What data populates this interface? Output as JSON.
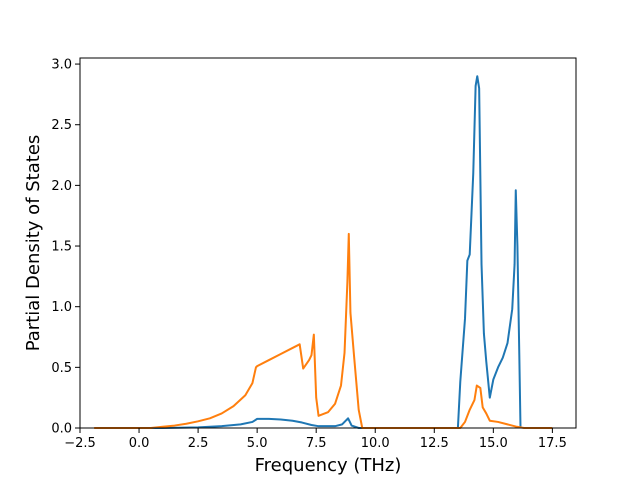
{
  "chart_data": {
    "type": "line",
    "xlabel": "Frequency (THz)",
    "ylabel": "Partial Density of States",
    "xlim": [
      -2.5,
      18.5
    ],
    "ylim": [
      0,
      3.05
    ],
    "xticks": [
      -2.5,
      0.0,
      2.5,
      5.0,
      7.5,
      10.0,
      12.5,
      15.0,
      17.5
    ],
    "xtick_labels": [
      "−2.5",
      "0.0",
      "2.5",
      "5.0",
      "7.5",
      "10.0",
      "12.5",
      "15.0",
      "17.5"
    ],
    "yticks": [
      0.0,
      0.5,
      1.0,
      1.5,
      2.0,
      2.5,
      3.0
    ],
    "ytick_labels": [
      "0.0",
      "0.5",
      "1.0",
      "1.5",
      "2.0",
      "2.5",
      "3.0"
    ],
    "grid": false,
    "series": [
      {
        "color": "#1f77b4",
        "points": [
          [
            -1.6,
            0.0
          ],
          [
            1.0,
            0.0
          ],
          [
            2.5,
            0.005
          ],
          [
            3.5,
            0.015
          ],
          [
            4.3,
            0.03
          ],
          [
            4.8,
            0.05
          ],
          [
            5.0,
            0.075
          ],
          [
            5.5,
            0.075
          ],
          [
            6.0,
            0.07
          ],
          [
            6.5,
            0.06
          ],
          [
            6.9,
            0.045
          ],
          [
            7.3,
            0.025
          ],
          [
            7.6,
            0.015
          ],
          [
            8.3,
            0.015
          ],
          [
            8.6,
            0.03
          ],
          [
            8.85,
            0.08
          ],
          [
            9.0,
            0.02
          ],
          [
            9.3,
            0.0
          ],
          [
            13.5,
            0.0
          ],
          [
            13.6,
            0.38
          ],
          [
            13.8,
            0.9
          ],
          [
            13.9,
            1.38
          ],
          [
            14.0,
            1.43
          ],
          [
            14.15,
            2.1
          ],
          [
            14.25,
            2.82
          ],
          [
            14.32,
            2.9
          ],
          [
            14.4,
            2.8
          ],
          [
            14.5,
            1.35
          ],
          [
            14.6,
            0.78
          ],
          [
            14.7,
            0.55
          ],
          [
            14.85,
            0.25
          ],
          [
            15.0,
            0.4
          ],
          [
            15.2,
            0.5
          ],
          [
            15.4,
            0.58
          ],
          [
            15.6,
            0.7
          ],
          [
            15.8,
            0.98
          ],
          [
            15.9,
            1.35
          ],
          [
            15.95,
            1.96
          ],
          [
            16.02,
            1.5
          ],
          [
            16.1,
            0.6
          ],
          [
            16.15,
            0.0
          ]
        ]
      },
      {
        "color": "#ff7f0e",
        "points": [
          [
            -1.9,
            0.0
          ],
          [
            0.5,
            0.0
          ],
          [
            1.0,
            0.01
          ],
          [
            1.5,
            0.02
          ],
          [
            2.0,
            0.035
          ],
          [
            2.5,
            0.055
          ],
          [
            3.0,
            0.08
          ],
          [
            3.5,
            0.12
          ],
          [
            4.0,
            0.18
          ],
          [
            4.5,
            0.27
          ],
          [
            4.8,
            0.37
          ],
          [
            4.95,
            0.5
          ],
          [
            5.0,
            0.51
          ],
          [
            5.5,
            0.56
          ],
          [
            6.0,
            0.61
          ],
          [
            6.5,
            0.66
          ],
          [
            6.8,
            0.69
          ],
          [
            6.95,
            0.49
          ],
          [
            7.2,
            0.56
          ],
          [
            7.3,
            0.6
          ],
          [
            7.4,
            0.77
          ],
          [
            7.5,
            0.25
          ],
          [
            7.6,
            0.1
          ],
          [
            8.0,
            0.13
          ],
          [
            8.3,
            0.2
          ],
          [
            8.55,
            0.35
          ],
          [
            8.7,
            0.62
          ],
          [
            8.82,
            1.2
          ],
          [
            8.88,
            1.6
          ],
          [
            8.95,
            0.95
          ],
          [
            9.1,
            0.6
          ],
          [
            9.3,
            0.15
          ],
          [
            9.45,
            0.0
          ],
          [
            13.6,
            0.0
          ],
          [
            13.8,
            0.05
          ],
          [
            14.0,
            0.15
          ],
          [
            14.2,
            0.23
          ],
          [
            14.3,
            0.35
          ],
          [
            14.45,
            0.33
          ],
          [
            14.55,
            0.17
          ],
          [
            14.7,
            0.12
          ],
          [
            14.85,
            0.06
          ],
          [
            15.2,
            0.05
          ],
          [
            15.6,
            0.03
          ],
          [
            16.0,
            0.01
          ],
          [
            16.3,
            0.0
          ],
          [
            17.5,
            0.0
          ]
        ]
      }
    ]
  }
}
